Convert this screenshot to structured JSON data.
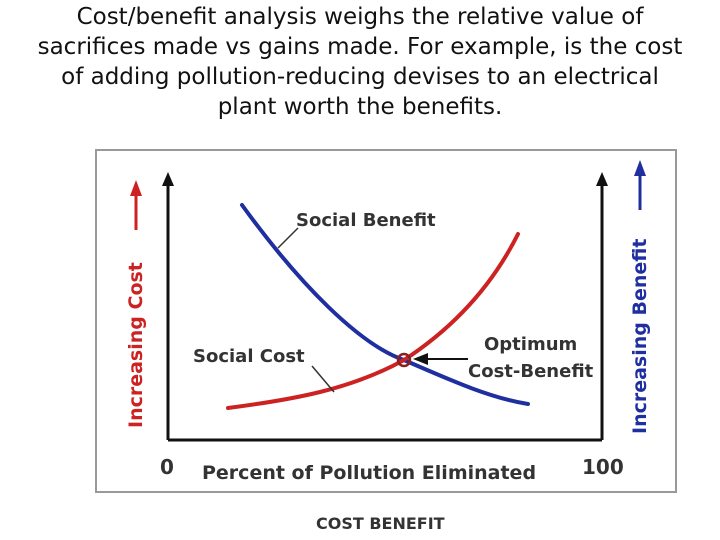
{
  "caption": {
    "lines": [
      "Cost/benefit analysis weighs the relative value of",
      "sacrifices made vs gains made.  For example, is the cost",
      "of adding pollution-reducing devises to an electrical",
      "plant worth the benefits."
    ]
  },
  "diagram": {
    "left_axis_label": "Increasing Cost",
    "right_axis_label": "Increasing Benefit",
    "x_axis_label": "Percent of Pollution Eliminated",
    "x_min_label": "0",
    "x_max_label": "100",
    "social_benefit_label": "Social Benefit",
    "social_cost_label": "Social Cost",
    "optimum_label_line1": "Optimum",
    "optimum_label_line2": "Cost-Benefit",
    "footer_caption": "COST BENEFIT",
    "colors": {
      "benefit": "#1f2fa0",
      "cost": "#cc2222",
      "left_axis_label": "#cc2222",
      "right_axis_label": "#1f2fa0",
      "axes": "#111111",
      "frame": "#999999"
    }
  }
}
